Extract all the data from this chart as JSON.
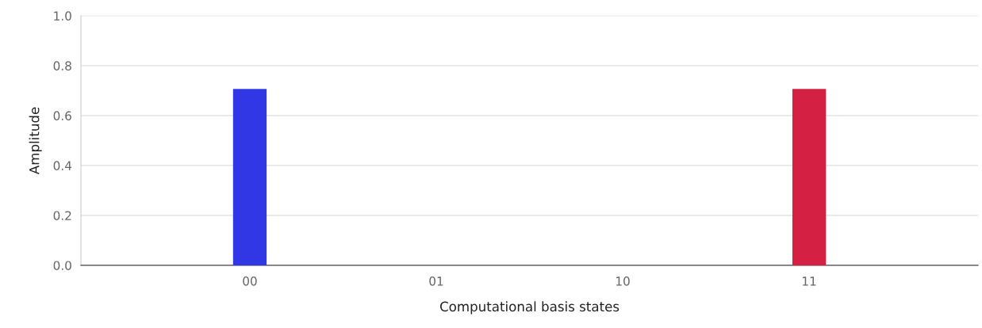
{
  "chart_data": {
    "type": "bar",
    "xlabel": "Computational basis states",
    "ylabel": "Amplitude",
    "categories": [
      "00",
      "01",
      "10",
      "11"
    ],
    "values": [
      0.707,
      0,
      0,
      0.707
    ],
    "colors": [
      "#3237e6",
      "#3237e6",
      "#d42043",
      "#d42043"
    ],
    "ylim": [
      0,
      1
    ],
    "yticks": [
      {
        "value": 0,
        "label": "0.0"
      },
      {
        "value": 0.2,
        "label": "0.2"
      },
      {
        "value": 0.4,
        "label": "0.4"
      },
      {
        "value": 0.6,
        "label": "0.6"
      },
      {
        "value": 0.8,
        "label": "0.8"
      },
      {
        "value": 1,
        "label": "1.0"
      }
    ],
    "grid": "y"
  }
}
